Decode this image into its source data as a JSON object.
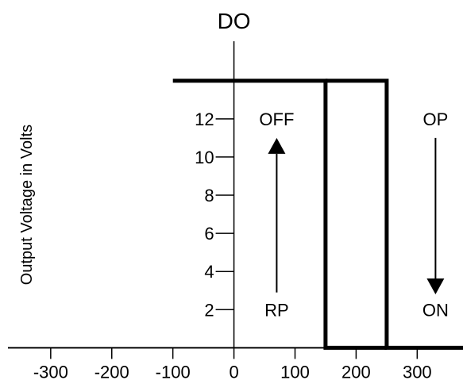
{
  "chart_data": {
    "type": "line",
    "title": "DO",
    "xlabel": "",
    "ylabel": "Output Voltage in Volts",
    "xlim": [
      -370,
      375
    ],
    "ylim": [
      -0.4,
      17.4
    ],
    "x_ticks": [
      {
        "value": -300,
        "label": "-300"
      },
      {
        "value": -200,
        "label": "-200"
      },
      {
        "value": -100,
        "label": "-100"
      },
      {
        "value": 0,
        "label": "0"
      },
      {
        "value": 100,
        "label": "100"
      },
      {
        "value": 200,
        "label": "200"
      },
      {
        "value": 300,
        "label": "300"
      }
    ],
    "y_ticks": [
      {
        "value": 2,
        "label": "2"
      },
      {
        "value": 4,
        "label": "4"
      },
      {
        "value": 6,
        "label": "6"
      },
      {
        "value": 8,
        "label": "8"
      },
      {
        "value": 10,
        "label": "10"
      },
      {
        "value": 12,
        "label": "12"
      }
    ],
    "series": [
      {
        "x": [
          -100,
          150,
          150,
          250
        ],
        "y": [
          14,
          14,
          0,
          0
        ]
      },
      {
        "x": [
          150,
          250,
          250,
          375
        ],
        "y": [
          14,
          14,
          0,
          0
        ]
      }
    ],
    "annotations": [
      {
        "text": "OFF",
        "x": 70,
        "y": 12
      },
      {
        "text": "RP",
        "x": 70,
        "y": 2
      },
      {
        "text": "OP",
        "x": 330,
        "y": 12
      },
      {
        "text": "ON",
        "x": 330,
        "y": 2
      }
    ],
    "arrows": [
      {
        "x": 70,
        "from_y": 2.9,
        "to_y": 11.0
      },
      {
        "x": 330,
        "from_y": 11.0,
        "to_y": 2.8
      }
    ],
    "grid": false,
    "legend": "none",
    "line_color": "#000000",
    "background": "#ffffff"
  }
}
